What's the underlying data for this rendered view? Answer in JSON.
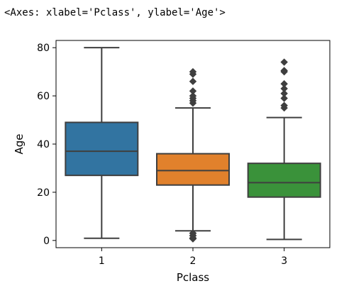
{
  "output_repr": "<Axes: xlabel='Pclass', ylabel='Age'>",
  "chart_data": {
    "type": "box",
    "title": "",
    "xlabel": "Pclass",
    "ylabel": "Age",
    "categories": [
      "1",
      "2",
      "3"
    ],
    "ylim": [
      -3,
      83
    ],
    "yticks": [
      0,
      20,
      40,
      60,
      80
    ],
    "grid": false,
    "boxes": [
      {
        "category": "1",
        "color": "#3274a1",
        "whisker_low": 0.92,
        "q1": 27,
        "median": 37,
        "q3": 49,
        "whisker_high": 80,
        "outliers": []
      },
      {
        "category": "2",
        "color": "#e1812c",
        "whisker_low": 4,
        "q1": 23,
        "median": 29,
        "q3": 36,
        "whisker_high": 55,
        "outliers": [
          0.67,
          0.83,
          0.83,
          1,
          1,
          2,
          2,
          2,
          3,
          3,
          3,
          57,
          58,
          59,
          60,
          62,
          66,
          69,
          70
        ]
      },
      {
        "category": "3",
        "color": "#3a923a",
        "whisker_low": 0.42,
        "q1": 18,
        "median": 24,
        "q3": 32,
        "whisker_high": 51,
        "outliers": [
          55,
          56,
          59,
          61,
          63,
          65,
          70,
          70.5,
          74
        ]
      }
    ]
  }
}
